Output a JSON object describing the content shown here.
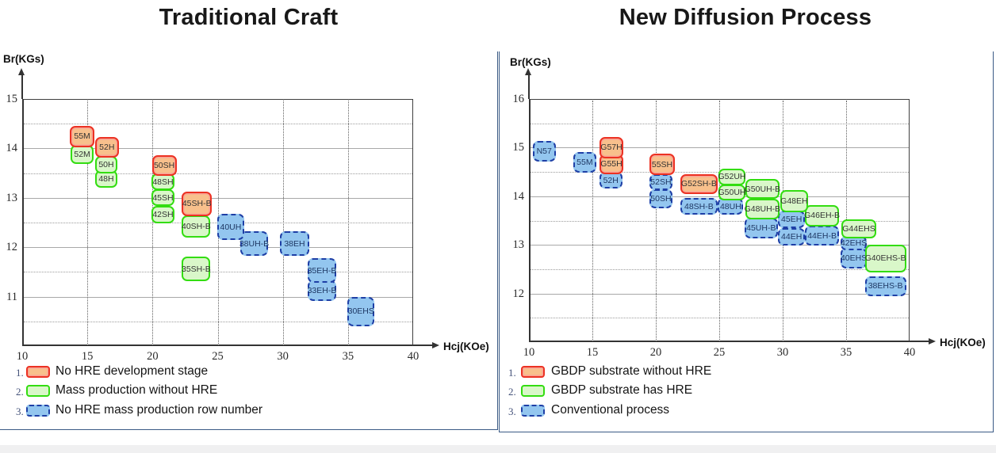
{
  "styles": {
    "stage1_fill": "#f8c08c",
    "stage1_border": "#ec3223",
    "stage2_fill": "#d9f7c9",
    "stage2_border": "#33dd11",
    "stage3_fill": "#93c6ef",
    "stage3_border": "#1e3fa6",
    "panel_border": "#3a5a85",
    "grid_color": "#9b9b9b",
    "axis_color": "#333333"
  },
  "chart_data": [
    {
      "type": "scatter",
      "title": "Traditional Craft",
      "xlabel": "Hcj(KOe)",
      "ylabel": "Br(KGs)",
      "x_ticks": [
        10,
        15,
        20,
        25,
        30,
        35,
        40
      ],
      "y_ticks": [
        15,
        14,
        13,
        12,
        11
      ],
      "x_range": [
        10,
        40
      ],
      "y_range": [
        10,
        15
      ],
      "grid": "on",
      "legend_position": "below",
      "legend": [
        {
          "num": "1.",
          "category": 1,
          "label": "No HRE development stage"
        },
        {
          "num": "2.",
          "category": 2,
          "label": "Mass production without HRE"
        },
        {
          "num": "3.",
          "category": 3,
          "label": "No HRE mass production row number"
        }
      ],
      "points": [
        {
          "label": "55M",
          "category": 1,
          "x": 14.6,
          "y": 14.24,
          "w": 1.85,
          "h": 0.42
        },
        {
          "label": "52H",
          "category": 1,
          "x": 16.5,
          "y": 14.02,
          "w": 1.85,
          "h": 0.42
        },
        {
          "label": "52M",
          "category": 2,
          "x": 14.6,
          "y": 13.88,
          "w": 1.75,
          "h": 0.38
        },
        {
          "label": "50H",
          "category": 2,
          "x": 16.45,
          "y": 13.67,
          "w": 1.7,
          "h": 0.34
        },
        {
          "label": "48H",
          "category": 2,
          "x": 16.45,
          "y": 13.38,
          "w": 1.7,
          "h": 0.34
        },
        {
          "label": "50SH",
          "category": 1,
          "x": 20.9,
          "y": 13.66,
          "w": 1.9,
          "h": 0.42
        },
        {
          "label": "48SH",
          "category": 2,
          "x": 20.8,
          "y": 13.32,
          "w": 1.75,
          "h": 0.34
        },
        {
          "label": "45SH",
          "category": 2,
          "x": 20.8,
          "y": 13.0,
          "w": 1.75,
          "h": 0.34
        },
        {
          "label": "42SH",
          "category": 2,
          "x": 20.8,
          "y": 12.66,
          "w": 1.75,
          "h": 0.34
        },
        {
          "label": "45SH-B",
          "category": 1,
          "x": 23.4,
          "y": 12.88,
          "w": 2.3,
          "h": 0.5
        },
        {
          "label": "40SH-B",
          "category": 2,
          "x": 23.35,
          "y": 12.42,
          "w": 2.2,
          "h": 0.46
        },
        {
          "label": "35SH-B",
          "category": 2,
          "x": 23.35,
          "y": 11.56,
          "w": 2.2,
          "h": 0.5
        },
        {
          "label": "40UH",
          "category": 3,
          "x": 26.0,
          "y": 12.41,
          "w": 2.05,
          "h": 0.52
        },
        {
          "label": "38UH-B",
          "category": 3,
          "x": 27.8,
          "y": 12.07,
          "w": 2.15,
          "h": 0.5
        },
        {
          "label": "38EH",
          "category": 3,
          "x": 30.9,
          "y": 12.07,
          "w": 2.25,
          "h": 0.5
        },
        {
          "label": "35EH-B",
          "category": 3,
          "x": 33.0,
          "y": 11.53,
          "w": 2.15,
          "h": 0.5
        },
        {
          "label": "33EH-B",
          "category": 3,
          "x": 33.0,
          "y": 11.12,
          "w": 2.15,
          "h": 0.42
        },
        {
          "label": "30EHS",
          "category": 3,
          "x": 36.0,
          "y": 10.7,
          "w": 2.05,
          "h": 0.6
        }
      ]
    },
    {
      "type": "scatter",
      "title": "New Diffusion Process",
      "xlabel": "Hcj(KOe)",
      "ylabel": "Br(KGs)",
      "x_ticks": [
        10,
        15,
        20,
        25,
        30,
        35,
        40
      ],
      "y_ticks": [
        16,
        15,
        14,
        13,
        12
      ],
      "x_range": [
        10,
        40
      ],
      "y_range": [
        11,
        16
      ],
      "grid": "on",
      "legend_position": "below",
      "legend": [
        {
          "num": "1.",
          "category": 1,
          "label": "GBDP substrate without HRE"
        },
        {
          "num": "2.",
          "category": 2,
          "label": "GBDP substrate has HRE"
        },
        {
          "num": "3.",
          "category": 3,
          "label": "Conventional process"
        }
      ],
      "points": [
        {
          "label": "N57",
          "category": 3,
          "x": 11.2,
          "y": 14.93,
          "w": 1.8,
          "h": 0.42
        },
        {
          "label": "55M",
          "category": 3,
          "x": 14.4,
          "y": 14.7,
          "w": 1.8,
          "h": 0.42
        },
        {
          "label": "G57H",
          "category": 1,
          "x": 16.5,
          "y": 15.0,
          "w": 1.9,
          "h": 0.44
        },
        {
          "label": "G55H",
          "category": 1,
          "x": 16.5,
          "y": 14.66,
          "w": 1.9,
          "h": 0.4
        },
        {
          "label": "52H",
          "category": 3,
          "x": 16.45,
          "y": 14.33,
          "w": 1.8,
          "h": 0.34
        },
        {
          "label": "55SH",
          "category": 1,
          "x": 20.5,
          "y": 14.65,
          "w": 2.0,
          "h": 0.44
        },
        {
          "label": "52SH",
          "category": 3,
          "x": 20.4,
          "y": 14.29,
          "w": 1.8,
          "h": 0.34
        },
        {
          "label": "50SH",
          "category": 3,
          "x": 20.4,
          "y": 13.95,
          "w": 1.8,
          "h": 0.38
        },
        {
          "label": "G52SH-B",
          "category": 1,
          "x": 23.4,
          "y": 14.25,
          "w": 2.95,
          "h": 0.4
        },
        {
          "label": "48SH-B",
          "category": 3,
          "x": 23.4,
          "y": 13.79,
          "w": 2.9,
          "h": 0.34
        },
        {
          "label": "G52UH",
          "category": 2,
          "x": 26.0,
          "y": 14.4,
          "w": 2.1,
          "h": 0.34
        },
        {
          "label": "G50UH",
          "category": 2,
          "x": 26.0,
          "y": 14.08,
          "w": 2.1,
          "h": 0.32
        },
        {
          "label": "48UH",
          "category": 3,
          "x": 25.9,
          "y": 13.79,
          "w": 2.0,
          "h": 0.34
        },
        {
          "label": "G50UH-B",
          "category": 2,
          "x": 28.4,
          "y": 14.15,
          "w": 2.7,
          "h": 0.42
        },
        {
          "label": "G48UH-B",
          "category": 2,
          "x": 28.4,
          "y": 13.74,
          "w": 2.7,
          "h": 0.42
        },
        {
          "label": "45UH-B",
          "category": 3,
          "x": 28.3,
          "y": 13.35,
          "w": 2.6,
          "h": 0.42
        },
        {
          "label": "G48EH",
          "category": 2,
          "x": 30.9,
          "y": 13.9,
          "w": 2.2,
          "h": 0.45
        },
        {
          "label": "45EH",
          "category": 3,
          "x": 30.7,
          "y": 13.52,
          "w": 2.1,
          "h": 0.36
        },
        {
          "label": "44EH",
          "category": 3,
          "x": 30.7,
          "y": 13.17,
          "w": 2.1,
          "h": 0.36
        },
        {
          "label": "G46EH-B",
          "category": 2,
          "x": 33.1,
          "y": 13.6,
          "w": 2.7,
          "h": 0.45
        },
        {
          "label": "44EH-B",
          "category": 3,
          "x": 33.1,
          "y": 13.19,
          "w": 2.7,
          "h": 0.42
        },
        {
          "label": "G44EHS",
          "category": 2,
          "x": 36.0,
          "y": 13.33,
          "w": 2.7,
          "h": 0.38
        },
        {
          "label": "42EHS",
          "category": 3,
          "x": 35.6,
          "y": 13.04,
          "w": 2.1,
          "h": 0.3
        },
        {
          "label": "40EHS",
          "category": 3,
          "x": 35.6,
          "y": 12.73,
          "w": 2.1,
          "h": 0.42
        },
        {
          "label": "G40EHS-B",
          "category": 2,
          "x": 38.1,
          "y": 12.72,
          "w": 3.25,
          "h": 0.58
        },
        {
          "label": "38EHS-B",
          "category": 3,
          "x": 38.1,
          "y": 12.15,
          "w": 3.25,
          "h": 0.4
        }
      ]
    }
  ]
}
